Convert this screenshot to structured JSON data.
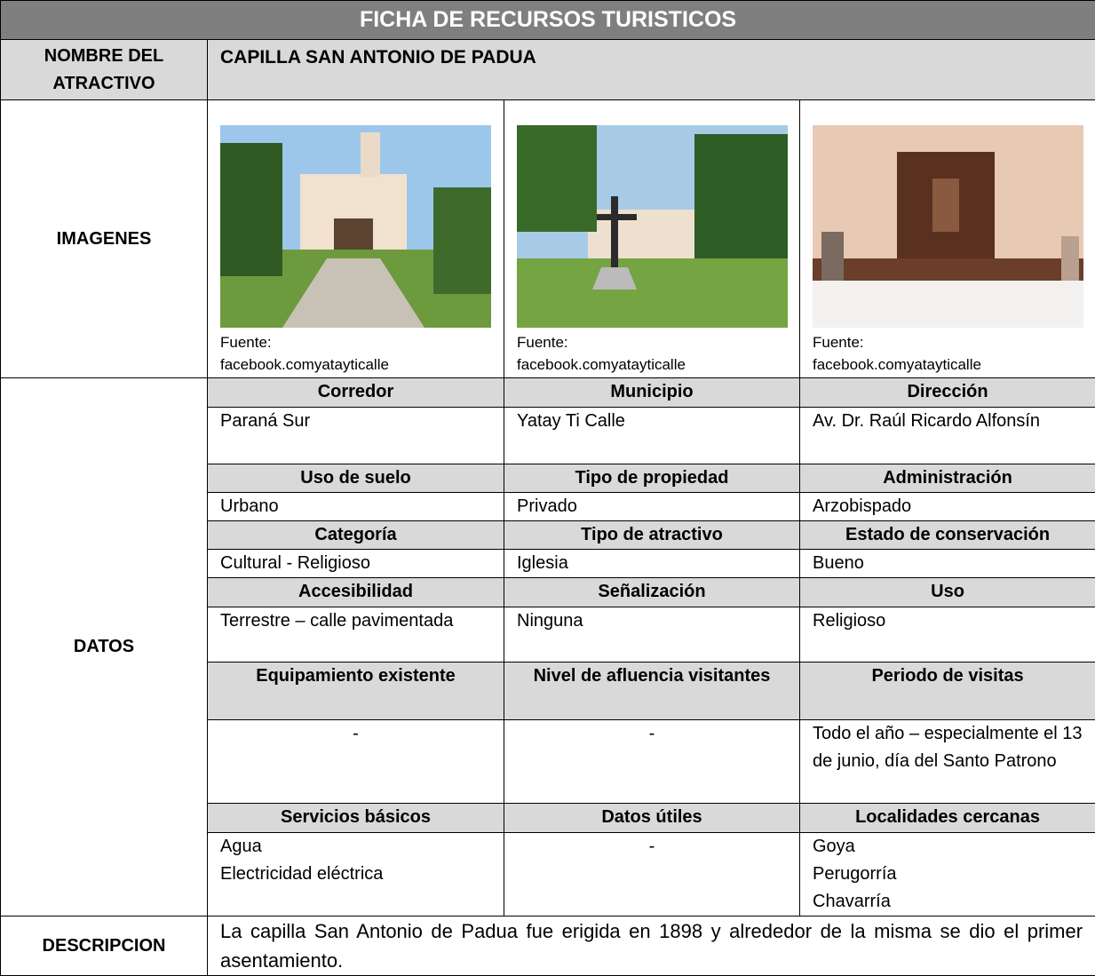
{
  "title": "FICHA DE RECURSOS TURISTICOS",
  "name": {
    "label": "NOMBRE DEL ATRACTIVO",
    "value": "CAPILLA SAN ANTONIO DE PADUA"
  },
  "images": {
    "label": "IMAGENES",
    "items": [
      {
        "source_label": "Fuente:",
        "source": "facebook.comyatayticalle"
      },
      {
        "source_label": "Fuente:",
        "source": "facebook.comyatayticalle"
      },
      {
        "source_label": "Fuente:",
        "source": "facebook.comyatayticalle"
      }
    ]
  },
  "datos": {
    "label": "DATOS",
    "groups": [
      {
        "headers": [
          "Corredor",
          "Municipio",
          "Dirección"
        ],
        "values": [
          "Paraná Sur",
          "Yatay Ti Calle",
          "Av. Dr. Raúl Ricardo Alfonsín"
        ]
      },
      {
        "headers": [
          "Uso de suelo",
          "Tipo de propiedad",
          "Administración"
        ],
        "values": [
          "Urbano",
          "Privado",
          "Arzobispado"
        ]
      },
      {
        "headers": [
          "Categoría",
          "Tipo de atractivo",
          "Estado de conservación"
        ],
        "values": [
          "Cultural - Religioso",
          "Iglesia",
          "Bueno"
        ]
      },
      {
        "headers": [
          "Accesibilidad",
          "Señalización",
          "Uso"
        ],
        "values": [
          "Terrestre – calle pavimentada",
          "Ninguna",
          "Religioso"
        ]
      },
      {
        "headers": [
          "Equipamiento existente",
          "Nivel de afluencia visitantes",
          "Periodo de visitas"
        ],
        "values": [
          "-",
          "-",
          "Todo el año – especialmente el 13 de junio, día del Santo Patrono"
        ]
      },
      {
        "headers": [
          "Servicios básicos",
          "Datos útiles",
          "Localidades cercanas"
        ],
        "values": [
          "Agua\nElectricidad eléctrica",
          "-",
          "Goya\nPerugorría\nChavarría"
        ]
      }
    ]
  },
  "description": {
    "label": "DESCRIPCION",
    "text": "La capilla San Antonio de Padua fue erigida en 1898 y alrededor de la misma se dio el primer asentamiento."
  }
}
